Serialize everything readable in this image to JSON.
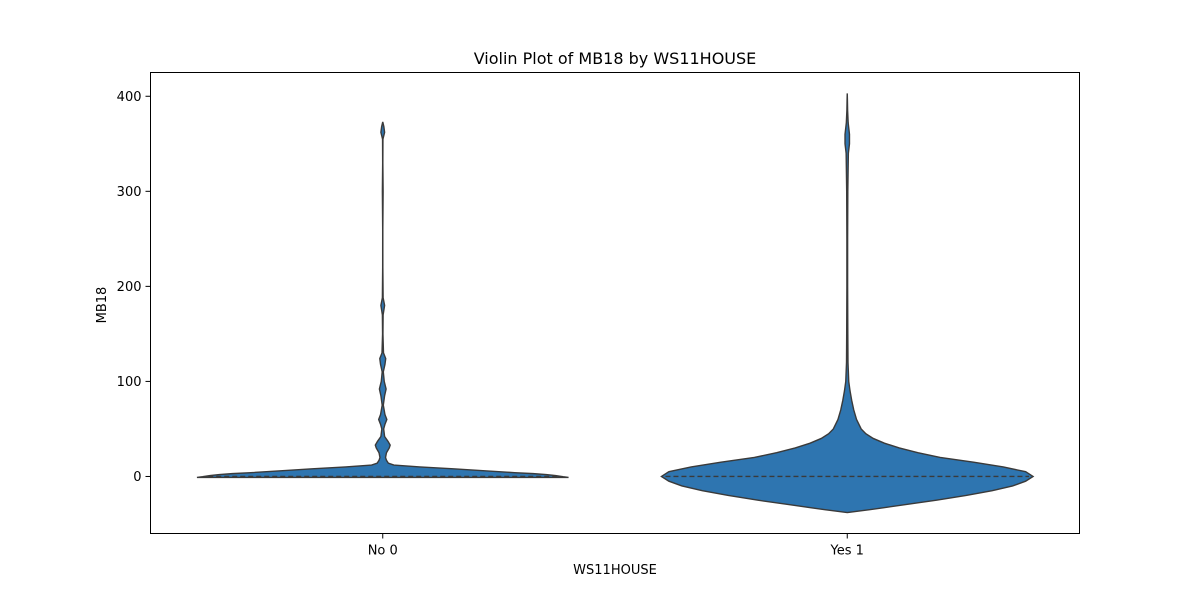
{
  "chart_data": {
    "type": "violin",
    "title": "Violin Plot of MB18 by WS11HOUSE",
    "xlabel": "WS11HOUSE",
    "ylabel": "MB18",
    "categories": [
      "No 0",
      "Yes 1"
    ],
    "y_ticks": [
      0,
      100,
      200,
      300,
      400
    ],
    "ylim": [
      -60,
      425
    ],
    "grid": false,
    "legend": "none",
    "color": "#2e75b0",
    "edge_color": "#3a3a3a",
    "violins": [
      {
        "category": "No 0",
        "min": -1,
        "max": 373,
        "median": 0,
        "density": [
          [
            -1,
            1.0
          ],
          [
            -0.3,
            0.97
          ],
          [
            1,
            0.93
          ],
          [
            2,
            0.88
          ],
          [
            3,
            0.81
          ],
          [
            4,
            0.71
          ],
          [
            6,
            0.55
          ],
          [
            8,
            0.38
          ],
          [
            10,
            0.2
          ],
          [
            12,
            0.06
          ],
          [
            14,
            0.03
          ],
          [
            17,
            0.02
          ],
          [
            20,
            0.015
          ],
          [
            25,
            0.02
          ],
          [
            30,
            0.035
          ],
          [
            33,
            0.04
          ],
          [
            37,
            0.028
          ],
          [
            42,
            0.01
          ],
          [
            50,
            0.005
          ],
          [
            55,
            0.012
          ],
          [
            60,
            0.022
          ],
          [
            65,
            0.012
          ],
          [
            75,
            0.003
          ],
          [
            85,
            0.01
          ],
          [
            92,
            0.018
          ],
          [
            100,
            0.008
          ],
          [
            110,
            0.003
          ],
          [
            118,
            0.012
          ],
          [
            124,
            0.016
          ],
          [
            130,
            0.004
          ],
          [
            150,
            0.001
          ],
          [
            170,
            0.002
          ],
          [
            180,
            0.01
          ],
          [
            188,
            0.002
          ],
          [
            220,
            0.0005
          ],
          [
            260,
            0.0004
          ],
          [
            300,
            0.002
          ],
          [
            330,
            0.0005
          ],
          [
            355,
            0.001
          ],
          [
            362,
            0.01
          ],
          [
            368,
            0.006
          ],
          [
            373,
            0.0
          ]
        ]
      },
      {
        "category": "Yes 1",
        "min": -38,
        "max": 403,
        "median": 0,
        "density": [
          [
            -38,
            0.0
          ],
          [
            -35,
            0.12
          ],
          [
            -30,
            0.3
          ],
          [
            -25,
            0.48
          ],
          [
            -20,
            0.64
          ],
          [
            -15,
            0.78
          ],
          [
            -10,
            0.89
          ],
          [
            -5,
            0.96
          ],
          [
            0,
            1.0
          ],
          [
            5,
            0.96
          ],
          [
            10,
            0.84
          ],
          [
            15,
            0.68
          ],
          [
            20,
            0.5
          ],
          [
            25,
            0.38
          ],
          [
            30,
            0.28
          ],
          [
            35,
            0.2
          ],
          [
            40,
            0.14
          ],
          [
            45,
            0.1
          ],
          [
            50,
            0.075
          ],
          [
            60,
            0.05
          ],
          [
            70,
            0.035
          ],
          [
            80,
            0.024
          ],
          [
            90,
            0.015
          ],
          [
            100,
            0.008
          ],
          [
            120,
            0.004
          ],
          [
            150,
            0.003
          ],
          [
            200,
            0.002
          ],
          [
            250,
            0.002
          ],
          [
            300,
            0.003
          ],
          [
            340,
            0.006
          ],
          [
            350,
            0.012
          ],
          [
            360,
            0.012
          ],
          [
            372,
            0.005
          ],
          [
            385,
            0.002
          ],
          [
            395,
            0.001
          ],
          [
            403,
            0.0
          ]
        ]
      }
    ]
  }
}
